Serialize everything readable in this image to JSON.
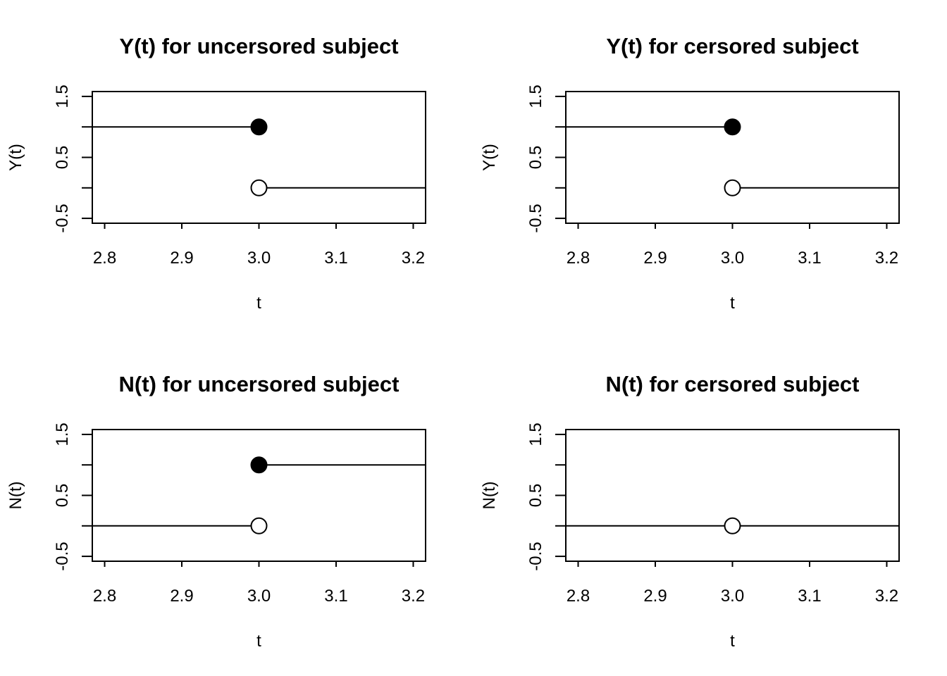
{
  "chart_data": [
    {
      "type": "line",
      "title": "Y(t) for uncersored subject",
      "xlabel": "t",
      "ylabel": "Y(t)",
      "xlim": [
        2.8,
        3.2
      ],
      "ylim": [
        -0.5,
        1.5
      ],
      "x_ticks": [
        "2.8",
        "2.9",
        "3.0",
        "3.1",
        "3.2"
      ],
      "y_ticks": [
        "-0.5",
        "0.5",
        "1.5"
      ],
      "segments": [
        {
          "x": [
            2.8,
            3.0
          ],
          "y": [
            1,
            1
          ]
        },
        {
          "x": [
            3.0,
            3.2
          ],
          "y": [
            0,
            0
          ]
        }
      ],
      "points": [
        {
          "x": 3.0,
          "y": 1,
          "filled": true
        },
        {
          "x": 3.0,
          "y": 0,
          "filled": false
        }
      ]
    },
    {
      "type": "line",
      "title": "Y(t) for cersored subject",
      "xlabel": "t",
      "ylabel": "Y(t)",
      "xlim": [
        2.8,
        3.2
      ],
      "ylim": [
        -0.5,
        1.5
      ],
      "x_ticks": [
        "2.8",
        "2.9",
        "3.0",
        "3.1",
        "3.2"
      ],
      "y_ticks": [
        "-0.5",
        "0.5",
        "1.5"
      ],
      "segments": [
        {
          "x": [
            2.8,
            3.0
          ],
          "y": [
            1,
            1
          ]
        },
        {
          "x": [
            3.0,
            3.2
          ],
          "y": [
            0,
            0
          ]
        }
      ],
      "points": [
        {
          "x": 3.0,
          "y": 1,
          "filled": true
        },
        {
          "x": 3.0,
          "y": 0,
          "filled": false
        }
      ]
    },
    {
      "type": "line",
      "title": "N(t) for uncersored subject",
      "xlabel": "t",
      "ylabel": "N(t)",
      "xlim": [
        2.8,
        3.2
      ],
      "ylim": [
        -0.5,
        1.5
      ],
      "x_ticks": [
        "2.8",
        "2.9",
        "3.0",
        "3.1",
        "3.2"
      ],
      "y_ticks": [
        "-0.5",
        "0.5",
        "1.5"
      ],
      "segments": [
        {
          "x": [
            2.8,
            3.0
          ],
          "y": [
            0,
            0
          ]
        },
        {
          "x": [
            3.0,
            3.2
          ],
          "y": [
            1,
            1
          ]
        }
      ],
      "points": [
        {
          "x": 3.0,
          "y": 1,
          "filled": true
        },
        {
          "x": 3.0,
          "y": 0,
          "filled": false
        }
      ]
    },
    {
      "type": "line",
      "title": "N(t) for cersored subject",
      "xlabel": "t",
      "ylabel": "N(t)",
      "xlim": [
        2.8,
        3.2
      ],
      "ylim": [
        -0.5,
        1.5
      ],
      "x_ticks": [
        "2.8",
        "2.9",
        "3.0",
        "3.1",
        "3.2"
      ],
      "y_ticks": [
        "-0.5",
        "0.5",
        "1.5"
      ],
      "segments": [
        {
          "x": [
            2.8,
            3.2
          ],
          "y": [
            0,
            0
          ]
        }
      ],
      "points": [
        {
          "x": 3.0,
          "y": 0,
          "filled": false
        }
      ]
    }
  ]
}
